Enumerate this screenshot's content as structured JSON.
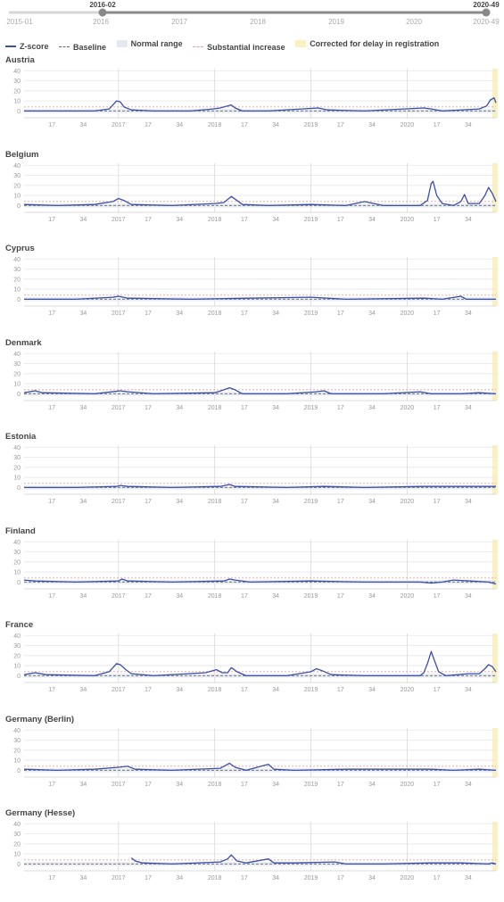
{
  "slider": {
    "start_label": "2015-01",
    "end_label": "2020-49",
    "selected_start": "2016-02",
    "selected_end": "2020-49",
    "year_labels": [
      "2016",
      "2017",
      "2018",
      "2019",
      "2020"
    ]
  },
  "legend": {
    "zscore": "Z-score",
    "baseline": "Baseline",
    "normal_range": "Normal range",
    "substantial": "Substantial increase",
    "corrected": "Corrected for delay in registration"
  },
  "colors": {
    "line": "#3a50a8",
    "normal_band": "#e3e8f0",
    "substantial": "#e6a0a0",
    "corrected": "#fbf1c0",
    "grid": "#e6e6e6"
  },
  "chart_data": {
    "type": "line",
    "x_unit": "ISO week",
    "x_range": [
      "2016-02",
      "2020-49"
    ],
    "y_ticks": [
      0,
      10,
      20,
      30,
      40
    ],
    "ylim": [
      -5,
      42
    ],
    "x_tick_labels": [
      "17",
      "34",
      "2017",
      "17",
      "34",
      "2018",
      "17",
      "34",
      "2019",
      "17",
      "34",
      "2020",
      "17",
      "34"
    ],
    "normal_range": [
      -2,
      2
    ],
    "substantial_increase": 4,
    "baseline": 0,
    "corrected_from": "2020-47",
    "panels": [
      {
        "country": "Austria",
        "values": [
          [
            "2016-02",
            0
          ],
          [
            "2016-20",
            0
          ],
          [
            "2016-40",
            0
          ],
          [
            "2016-48",
            2
          ],
          [
            "2016-52",
            10
          ],
          [
            "2017-02",
            9
          ],
          [
            "2017-04",
            4
          ],
          [
            "2017-08",
            1
          ],
          [
            "2017-20",
            0
          ],
          [
            "2017-40",
            0
          ],
          [
            "2017-52",
            2
          ],
          [
            "2018-04",
            3
          ],
          [
            "2018-08",
            5
          ],
          [
            "2018-10",
            6
          ],
          [
            "2018-12",
            3
          ],
          [
            "2018-16",
            0
          ],
          [
            "2018-30",
            0
          ],
          [
            "2019-05",
            3
          ],
          [
            "2019-10",
            1
          ],
          [
            "2019-30",
            0
          ],
          [
            "2020-10",
            3
          ],
          [
            "2020-14",
            2
          ],
          [
            "2020-20",
            0
          ],
          [
            "2020-40",
            2
          ],
          [
            "2020-44",
            5
          ],
          [
            "2020-46",
            11
          ],
          [
            "2020-48",
            13
          ],
          [
            "2020-49",
            8
          ]
        ]
      },
      {
        "country": "Belgium",
        "values": [
          [
            "2016-02",
            1
          ],
          [
            "2016-20",
            0
          ],
          [
            "2016-40",
            1
          ],
          [
            "2016-50",
            4
          ],
          [
            "2017-01",
            7
          ],
          [
            "2017-04",
            5
          ],
          [
            "2017-08",
            1
          ],
          [
            "2017-30",
            0
          ],
          [
            "2018-01",
            2
          ],
          [
            "2018-06",
            3
          ],
          [
            "2018-10",
            9
          ],
          [
            "2018-13",
            5
          ],
          [
            "2018-16",
            1
          ],
          [
            "2018-30",
            0
          ],
          [
            "2019-01",
            1
          ],
          [
            "2019-20",
            0
          ],
          [
            "2019-30",
            4
          ],
          [
            "2019-40",
            0
          ],
          [
            "2020-08",
            0
          ],
          [
            "2020-12",
            5
          ],
          [
            "2020-14",
            22
          ],
          [
            "2020-15",
            24
          ],
          [
            "2020-17",
            10
          ],
          [
            "2020-20",
            2
          ],
          [
            "2020-26",
            0
          ],
          [
            "2020-30",
            4
          ],
          [
            "2020-32",
            11
          ],
          [
            "2020-34",
            2
          ],
          [
            "2020-40",
            2
          ],
          [
            "2020-43",
            10
          ],
          [
            "2020-45",
            18
          ],
          [
            "2020-47",
            12
          ],
          [
            "2020-49",
            4
          ]
        ]
      },
      {
        "country": "Cyprus",
        "values": [
          [
            "2016-02",
            0
          ],
          [
            "2016-30",
            0
          ],
          [
            "2016-50",
            2
          ],
          [
            "2017-01",
            3
          ],
          [
            "2017-06",
            1
          ],
          [
            "2017-40",
            0
          ],
          [
            "2018-20",
            1
          ],
          [
            "2019-01",
            2
          ],
          [
            "2019-20",
            0
          ],
          [
            "2020-10",
            1
          ],
          [
            "2020-20",
            0
          ],
          [
            "2020-30",
            3
          ],
          [
            "2020-33",
            0
          ],
          [
            "2020-49",
            0
          ]
        ]
      },
      {
        "country": "Denmark",
        "values": [
          [
            "2016-02",
            1
          ],
          [
            "2016-08",
            3
          ],
          [
            "2016-12",
            1
          ],
          [
            "2016-40",
            0
          ],
          [
            "2017-02",
            3
          ],
          [
            "2017-06",
            2
          ],
          [
            "2017-20",
            0
          ],
          [
            "2018-01",
            1
          ],
          [
            "2018-06",
            4
          ],
          [
            "2018-09",
            6
          ],
          [
            "2018-12",
            4
          ],
          [
            "2018-16",
            0
          ],
          [
            "2018-40",
            0
          ],
          [
            "2019-04",
            2
          ],
          [
            "2019-08",
            3
          ],
          [
            "2019-12",
            0
          ],
          [
            "2019-40",
            0
          ],
          [
            "2020-08",
            2
          ],
          [
            "2020-14",
            0
          ],
          [
            "2020-30",
            0
          ],
          [
            "2020-40",
            1
          ],
          [
            "2020-49",
            0
          ]
        ]
      },
      {
        "country": "Estonia",
        "values": [
          [
            "2016-02",
            0
          ],
          [
            "2016-30",
            0
          ],
          [
            "2016-52",
            1
          ],
          [
            "2017-02",
            2
          ],
          [
            "2017-06",
            1
          ],
          [
            "2017-30",
            0
          ],
          [
            "2018-04",
            1
          ],
          [
            "2018-09",
            3
          ],
          [
            "2018-12",
            1
          ],
          [
            "2018-40",
            0
          ],
          [
            "2019-08",
            1
          ],
          [
            "2019-30",
            0
          ],
          [
            "2020-10",
            1
          ],
          [
            "2020-40",
            1
          ],
          [
            "2020-49",
            1
          ]
        ]
      },
      {
        "country": "Finland",
        "values": [
          [
            "2016-02",
            2
          ],
          [
            "2016-08",
            1
          ],
          [
            "2016-30",
            0
          ],
          [
            "2017-01",
            1
          ],
          [
            "2017-03",
            3
          ],
          [
            "2017-06",
            1
          ],
          [
            "2017-30",
            0
          ],
          [
            "2018-06",
            1
          ],
          [
            "2018-09",
            3
          ],
          [
            "2018-12",
            2
          ],
          [
            "2018-20",
            0
          ],
          [
            "2019-01",
            1
          ],
          [
            "2019-30",
            0
          ],
          [
            "2020-08",
            0
          ],
          [
            "2020-14",
            -1
          ],
          [
            "2020-20",
            0
          ],
          [
            "2020-26",
            2
          ],
          [
            "2020-35",
            1
          ],
          [
            "2020-45",
            0
          ],
          [
            "2020-49",
            -2
          ]
        ]
      },
      {
        "country": "France",
        "values": [
          [
            "2016-02",
            1
          ],
          [
            "2016-08",
            3
          ],
          [
            "2016-14",
            1
          ],
          [
            "2016-40",
            0
          ],
          [
            "2016-48",
            4
          ],
          [
            "2016-52",
            12
          ],
          [
            "2017-02",
            11
          ],
          [
            "2017-05",
            6
          ],
          [
            "2017-08",
            2
          ],
          [
            "2017-20",
            0
          ],
          [
            "2017-48",
            3
          ],
          [
            "2018-02",
            6
          ],
          [
            "2018-05",
            3
          ],
          [
            "2018-08",
            3
          ],
          [
            "2018-10",
            8
          ],
          [
            "2018-13",
            4
          ],
          [
            "2018-18",
            0
          ],
          [
            "2018-40",
            0
          ],
          [
            "2019-01",
            4
          ],
          [
            "2019-04",
            7
          ],
          [
            "2019-07",
            5
          ],
          [
            "2019-12",
            1
          ],
          [
            "2019-30",
            0
          ],
          [
            "2020-08",
            0
          ],
          [
            "2020-10",
            3
          ],
          [
            "2020-12",
            12
          ],
          [
            "2020-14",
            24
          ],
          [
            "2020-16",
            14
          ],
          [
            "2020-18",
            4
          ],
          [
            "2020-22",
            0
          ],
          [
            "2020-34",
            2
          ],
          [
            "2020-40",
            2
          ],
          [
            "2020-43",
            7
          ],
          [
            "2020-45",
            11
          ],
          [
            "2020-47",
            9
          ],
          [
            "2020-49",
            4
          ]
        ]
      },
      {
        "country": "Germany (Berlin)",
        "values": [
          [
            "2016-02",
            1
          ],
          [
            "2016-20",
            0
          ],
          [
            "2016-40",
            1
          ],
          [
            "2017-01",
            3
          ],
          [
            "2017-06",
            4
          ],
          [
            "2017-10",
            1
          ],
          [
            "2017-30",
            0
          ],
          [
            "2018-04",
            2
          ],
          [
            "2018-09",
            7
          ],
          [
            "2018-12",
            3
          ],
          [
            "2018-18",
            0
          ],
          [
            "2018-30",
            6
          ],
          [
            "2018-33",
            1
          ],
          [
            "2018-44",
            0
          ],
          [
            "2019-20",
            1
          ],
          [
            "2020-14",
            1
          ],
          [
            "2020-26",
            0
          ],
          [
            "2020-40",
            1
          ],
          [
            "2020-49",
            0
          ]
        ]
      },
      {
        "country": "Germany (Hesse)",
        "values": [
          [
            "2017-08",
            6
          ],
          [
            "2017-10",
            3
          ],
          [
            "2017-14",
            1
          ],
          [
            "2017-30",
            0
          ],
          [
            "2018-04",
            2
          ],
          [
            "2018-08",
            5
          ],
          [
            "2018-10",
            9
          ],
          [
            "2018-13",
            3
          ],
          [
            "2018-18",
            1
          ],
          [
            "2018-30",
            5
          ],
          [
            "2018-33",
            1
          ],
          [
            "2018-44",
            1
          ],
          [
            "2019-14",
            2
          ],
          [
            "2019-20",
            0
          ],
          [
            "2019-40",
            0
          ],
          [
            "2020-14",
            1
          ],
          [
            "2020-30",
            1
          ],
          [
            "2020-45",
            0
          ],
          [
            "2020-47",
            1
          ],
          [
            "2020-49",
            0
          ]
        ]
      }
    ]
  }
}
